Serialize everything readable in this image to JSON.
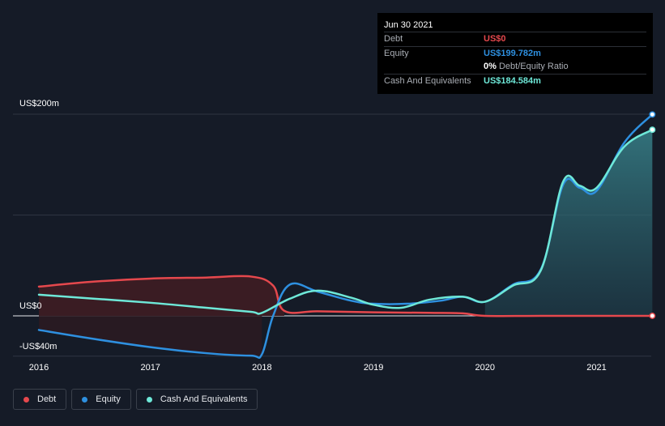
{
  "tooltip": {
    "date": "Jun 30 2021",
    "rows": [
      {
        "label": "Debt",
        "value": "US$0",
        "color": "#e5484d"
      },
      {
        "label": "Equity",
        "value": "US$199.782m",
        "color": "#2e90e0"
      },
      {
        "ratio_value": "0%",
        "ratio_text": " Debt/Equity Ratio"
      },
      {
        "label": "Cash And Equivalents",
        "value": "US$184.584m",
        "color": "#6ee8d8"
      }
    ]
  },
  "chart_data": {
    "type": "area",
    "y_tick_labels": [
      "US$200m",
      "US$0",
      "-US$40m"
    ],
    "x_tick_labels": [
      "2016",
      "2017",
      "2018",
      "2019",
      "2020",
      "2021"
    ],
    "ylim": [
      -40,
      200
    ],
    "grid": true,
    "legend_position": "bottom-left",
    "series": [
      {
        "name": "Debt",
        "color": "#e5484d",
        "points": [
          [
            2016.0,
            29
          ],
          [
            2016.5,
            34
          ],
          [
            2017.0,
            37
          ],
          [
            2017.5,
            38
          ],
          [
            2017.9,
            39
          ],
          [
            2018.1,
            30
          ],
          [
            2018.2,
            5
          ],
          [
            2018.5,
            4.5
          ],
          [
            2019.0,
            3.5
          ],
          [
            2019.5,
            3
          ],
          [
            2019.8,
            2.5
          ],
          [
            2020.0,
            0
          ],
          [
            2020.5,
            0
          ],
          [
            2021.0,
            0
          ],
          [
            2021.5,
            0
          ]
        ]
      },
      {
        "name": "Equity",
        "color": "#2e90e0",
        "points": [
          [
            2016.0,
            -14
          ],
          [
            2016.5,
            -23
          ],
          [
            2017.0,
            -31
          ],
          [
            2017.5,
            -37
          ],
          [
            2017.9,
            -39.5
          ],
          [
            2018.0,
            -38
          ],
          [
            2018.1,
            0
          ],
          [
            2018.25,
            31
          ],
          [
            2018.5,
            24
          ],
          [
            2018.8,
            15
          ],
          [
            2019.0,
            12
          ],
          [
            2019.3,
            12
          ],
          [
            2019.6,
            15
          ],
          [
            2019.8,
            19
          ],
          [
            2020.0,
            14
          ],
          [
            2020.25,
            31
          ],
          [
            2020.5,
            46
          ],
          [
            2020.7,
            130
          ],
          [
            2020.85,
            127
          ],
          [
            2021.0,
            124
          ],
          [
            2021.25,
            172
          ],
          [
            2021.5,
            199.782
          ]
        ]
      },
      {
        "name": "Cash And Equivalents",
        "color": "#6ee8d8",
        "points": [
          [
            2016.0,
            21
          ],
          [
            2016.5,
            17
          ],
          [
            2017.0,
            13
          ],
          [
            2017.5,
            8
          ],
          [
            2017.9,
            4
          ],
          [
            2018.0,
            3
          ],
          [
            2018.25,
            17
          ],
          [
            2018.5,
            25
          ],
          [
            2018.8,
            18
          ],
          [
            2019.0,
            11
          ],
          [
            2019.25,
            8
          ],
          [
            2019.5,
            16
          ],
          [
            2019.8,
            19
          ],
          [
            2020.0,
            14
          ],
          [
            2020.25,
            30
          ],
          [
            2020.5,
            45
          ],
          [
            2020.7,
            133
          ],
          [
            2020.85,
            129
          ],
          [
            2021.0,
            127
          ],
          [
            2021.25,
            168
          ],
          [
            2021.5,
            184.584
          ]
        ]
      }
    ]
  },
  "legend": {
    "items": [
      {
        "label": "Debt",
        "color": "#e5484d"
      },
      {
        "label": "Equity",
        "color": "#2e90e0"
      },
      {
        "label": "Cash And Equivalents",
        "color": "#6ee8d8"
      }
    ]
  }
}
